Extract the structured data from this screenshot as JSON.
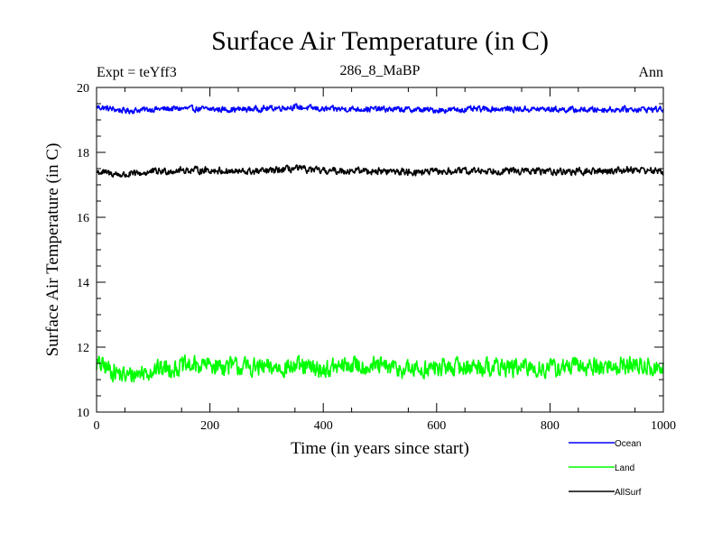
{
  "chart_data": {
    "type": "line",
    "title": "Surface Air Temperature (in C)",
    "subtitle_left": "Expt = teYff3",
    "subtitle_center": "286_8_MaBP",
    "subtitle_right": "Ann",
    "xlabel": "Time (in years since start)",
    "ylabel": "Surface Air Temperature (in C)",
    "xlim": [
      0,
      1000
    ],
    "ylim": [
      10,
      20
    ],
    "x_ticks": [
      0,
      200,
      400,
      600,
      800,
      1000
    ],
    "y_ticks": [
      10,
      12,
      14,
      16,
      18,
      20
    ],
    "grid": false,
    "legend_position": "below-right",
    "series": [
      {
        "name": "Ocean",
        "color": "#0000ff",
        "mean": 19.33,
        "variability": 0.05,
        "values": [
          19.4,
          19.28,
          19.33,
          19.35,
          19.33,
          19.32,
          19.35,
          19.4,
          19.33,
          19.34,
          19.33,
          19.32,
          19.3,
          19.32,
          19.34,
          19.33,
          19.33,
          19.31,
          19.32,
          19.33,
          19.33
        ]
      },
      {
        "name": "Land",
        "color": "#00ff00",
        "mean": 11.35,
        "variability": 0.16,
        "values": [
          11.5,
          11.1,
          11.3,
          11.4,
          11.45,
          11.4,
          11.35,
          11.4,
          11.3,
          11.45,
          11.4,
          11.3,
          11.35,
          11.4,
          11.4,
          11.35,
          11.35,
          11.4,
          11.4,
          11.45,
          11.3
        ]
      },
      {
        "name": "AllSurf",
        "color": "#000000",
        "mean": 17.42,
        "variability": 0.06,
        "values": [
          17.4,
          17.3,
          17.4,
          17.45,
          17.45,
          17.4,
          17.42,
          17.5,
          17.42,
          17.44,
          17.42,
          17.4,
          17.4,
          17.42,
          17.44,
          17.42,
          17.42,
          17.4,
          17.43,
          17.48,
          17.4
        ]
      }
    ]
  }
}
